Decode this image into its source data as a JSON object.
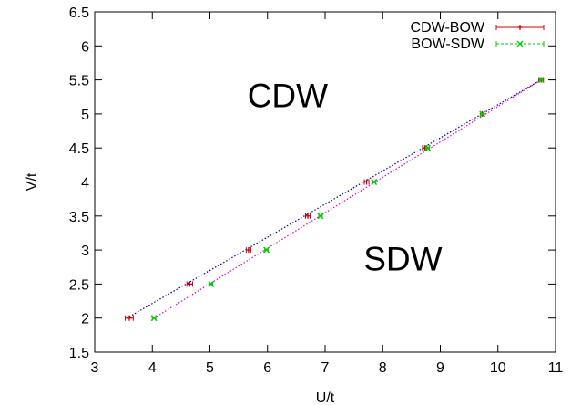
{
  "chart_data": {
    "type": "scatter",
    "xlabel": "U/t",
    "ylabel": "V/t",
    "xlim": [
      3,
      11
    ],
    "ylim": [
      1.5,
      6.5
    ],
    "xticks": [
      "3",
      "4",
      "5",
      "6",
      "7",
      "8",
      "9",
      "10",
      "11"
    ],
    "yticks": [
      "1.5",
      "2",
      "2.5",
      "3",
      "3.5",
      "4",
      "4.5",
      "5",
      "5.5",
      "6",
      "6.5"
    ],
    "grid": false,
    "legend_position": "top-right",
    "annotations": [
      {
        "text": "CDW",
        "x": 6.35,
        "y": 5.1
      },
      {
        "text": "SDW",
        "x": 8.35,
        "y": 2.7
      }
    ],
    "series": [
      {
        "name": "CDW-BOW",
        "color": "#d40000",
        "marker": "plus",
        "x": [
          3.6,
          4.65,
          5.67,
          6.7,
          7.72,
          8.73,
          9.73,
          10.75
        ],
        "y": [
          2.0,
          2.5,
          3.0,
          3.5,
          4.0,
          4.5,
          5.0,
          5.5
        ],
        "xerr": [
          0.07,
          0.05,
          0.04,
          0.04,
          0.04,
          0.04,
          0.03,
          0.04
        ]
      },
      {
        "name": "BOW-SDW",
        "color": "#00cc00",
        "marker": "x",
        "x": [
          4.03,
          5.02,
          5.98,
          6.92,
          7.85,
          8.78,
          9.73,
          10.75
        ],
        "y": [
          2.0,
          2.5,
          3.0,
          3.5,
          4.0,
          4.5,
          5.0,
          5.5
        ],
        "xerr": [
          0.03,
          0.03,
          0.03,
          0.03,
          0.03,
          0.03,
          0.03,
          0.03
        ]
      }
    ],
    "fit_lines": [
      {
        "color": "#0000b0",
        "style": "dotted",
        "x": [
          3.6,
          10.75
        ],
        "y": [
          2.02,
          5.5
        ]
      },
      {
        "color": "#dd00dd",
        "style": "dotted",
        "x": [
          4.03,
          10.75
        ],
        "y": [
          2.0,
          5.5
        ]
      }
    ]
  }
}
